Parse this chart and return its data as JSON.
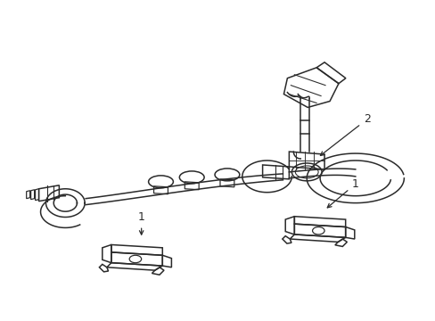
{
  "background_color": "#ffffff",
  "line_color": "#2a2a2a",
  "line_width": 1.1,
  "fig_width": 4.89,
  "fig_height": 3.6,
  "dpi": 100,
  "label_font_size": 9
}
